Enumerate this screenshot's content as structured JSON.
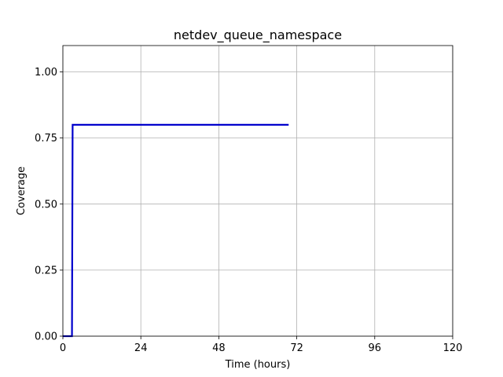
{
  "chart_data": {
    "type": "line",
    "title": "netdev_queue_namespace",
    "xlabel": "Time (hours)",
    "ylabel": "Coverage",
    "xlim": [
      0,
      120
    ],
    "ylim": [
      0,
      1.1
    ],
    "xticks": [
      0,
      24,
      48,
      72,
      96,
      120
    ],
    "xtick_labels": [
      "0",
      "24",
      "48",
      "72",
      "96",
      "120"
    ],
    "yticks": [
      0,
      0.25,
      0.5,
      0.75,
      1.0
    ],
    "ytick_labels": [
      "0.00",
      "0.25",
      "0.50",
      "0.75",
      "1.00"
    ],
    "grid": true,
    "series": [
      {
        "color": "#0000cc",
        "x": [
          0,
          2.8,
          3.0,
          69.5
        ],
        "y": [
          0,
          0,
          0.8,
          0.8
        ]
      }
    ]
  }
}
